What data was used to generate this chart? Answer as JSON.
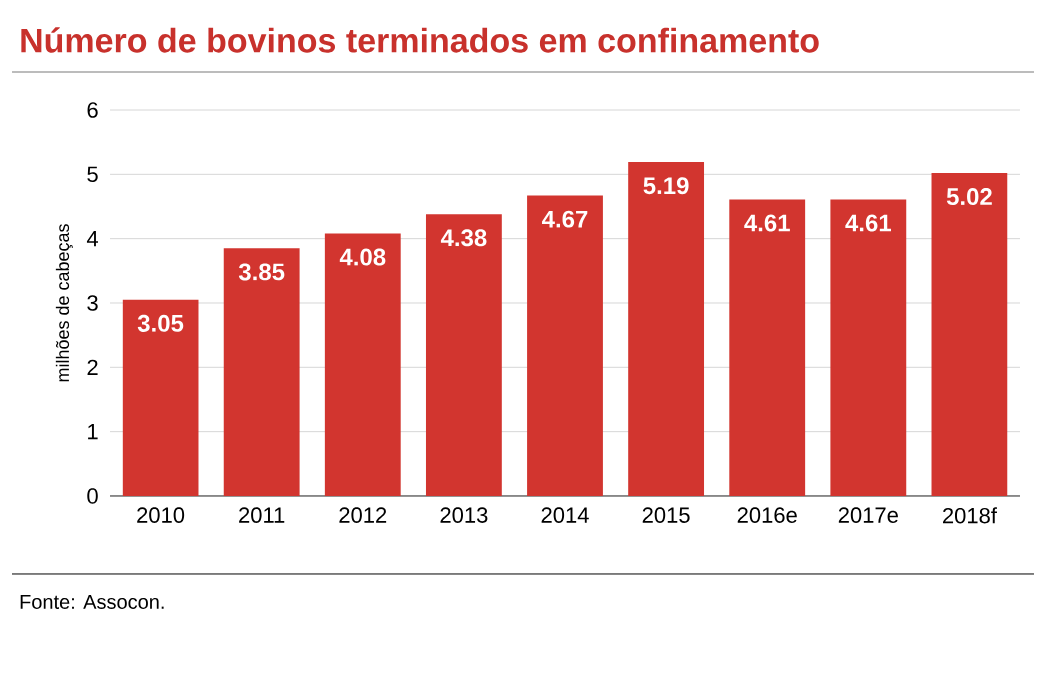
{
  "chart_data": {
    "type": "bar",
    "title": "Número de bovinos terminados em confinamento",
    "ylabel": "milhões de cabeças",
    "categories": [
      "2010",
      "2011",
      "2012",
      "2013",
      "2014",
      "2015",
      "2016e",
      "2017e",
      "2018f"
    ],
    "values": [
      3.05,
      3.85,
      4.08,
      4.38,
      4.67,
      5.19,
      4.61,
      4.61,
      5.02
    ],
    "color": "#d2352f",
    "ylim": [
      0,
      6
    ],
    "yticks": [
      0,
      1,
      2,
      3,
      4,
      5,
      6
    ],
    "grid": "y",
    "data_labels": true,
    "annotations": [
      "Fonte: Assocon."
    ]
  }
}
